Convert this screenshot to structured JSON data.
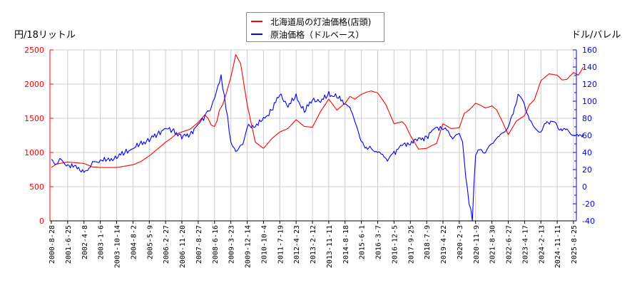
{
  "chart_data": {
    "type": "line",
    "title": "",
    "left_axis": {
      "label": "円/18リットル",
      "range": [
        0,
        2500
      ],
      "ticks": [
        0,
        500,
        1000,
        1500,
        2000,
        2500
      ],
      "color": "#ff0000"
    },
    "right_axis": {
      "label": "ドル/バレル",
      "range": [
        -40,
        160
      ],
      "ticks": [
        -40,
        -20,
        0,
        20,
        40,
        60,
        80,
        100,
        120,
        140,
        160
      ],
      "color": "#0000ff"
    },
    "x_tick_labels": [
      "2000-8-28",
      "2001-6-25",
      "2002-4-8",
      "2003-1-6",
      "2003-10-14",
      "2004-8-2",
      "2005-5-9",
      "2006-2-27",
      "2006-11-20",
      "2007-8-27",
      "2008-6-16",
      "2009-3-23",
      "2009-12-14",
      "2010-10-4",
      "2011-7-19",
      "2012-4-23",
      "2013-2-12",
      "2013-11-11",
      "2014-8-18",
      "2015-6-1",
      "2016-3-7",
      "2016-12-5",
      "2017-9-25",
      "2018-7-9",
      "2019-4-22",
      "2020-2-3",
      "2020-11-9",
      "2021-8-30",
      "2022-6-27",
      "2023-4-17",
      "2024-2-13",
      "2024-11-11",
      "2025-8-25"
    ],
    "grid": true,
    "legend_position": "top-center",
    "series": [
      {
        "name": "北海道局の灯油価格(店頭)",
        "axis": "left",
        "color": "#ff0000",
        "x_index": [
          0,
          0.3,
          1,
          2,
          2.5,
          3,
          4,
          5,
          5.5,
          6,
          6.5,
          7,
          7.3,
          7.6,
          8,
          8.5,
          9,
          9.4,
          9.6,
          9.8,
          10,
          10.15,
          10.3,
          10.5,
          10.7,
          11,
          11.3,
          11.6,
          12,
          12.5,
          13,
          13.5,
          14,
          14.5,
          15,
          15.5,
          16,
          16.5,
          17,
          17.5,
          18,
          18.3,
          18.6,
          19,
          19.3,
          19.6,
          20,
          20.5,
          21,
          21.5,
          21.7,
          22,
          22.5,
          23,
          23.3,
          23.6,
          24,
          24.5,
          25,
          25.3,
          25.6,
          26,
          26.3,
          26.6,
          27,
          27.3,
          27.6,
          28,
          28.5,
          29,
          29.3,
          29.6,
          30,
          30.5,
          31,
          31.3,
          31.6,
          32,
          32.3,
          32.6
        ],
        "values": [
          780,
          830,
          860,
          840,
          790,
          780,
          780,
          820,
          870,
          950,
          1050,
          1150,
          1200,
          1260,
          1300,
          1340,
          1440,
          1550,
          1500,
          1400,
          1380,
          1460,
          1620,
          1700,
          1850,
          2100,
          2430,
          2300,
          1700,
          1150,
          1060,
          1200,
          1300,
          1350,
          1480,
          1380,
          1370,
          1600,
          1780,
          1620,
          1720,
          1820,
          1780,
          1850,
          1880,
          1900,
          1870,
          1700,
          1420,
          1450,
          1400,
          1250,
          1050,
          1060,
          1100,
          1130,
          1420,
          1350,
          1360,
          1570,
          1620,
          1720,
          1690,
          1650,
          1680,
          1620,
          1470,
          1260,
          1460,
          1540,
          1700,
          1770,
          2050,
          2150,
          2130,
          2060,
          2070,
          2170,
          2130,
          2250
        ]
      },
      {
        "name": "原油価格（ドルベース）",
        "axis": "right",
        "color": "#0000ff",
        "x_index": [
          0,
          0.3,
          0.6,
          1,
          1.5,
          2,
          2.3,
          2.6,
          3,
          3.5,
          4,
          4.5,
          5,
          5.5,
          6,
          6.5,
          7,
          7.5,
          8,
          8.5,
          9,
          9.5,
          9.8,
          10,
          10.2,
          10.4,
          10.6,
          10.8,
          11,
          11.3,
          11.5,
          11.8,
          12,
          12.5,
          13,
          13.5,
          14,
          14.5,
          15,
          15.5,
          16,
          16.5,
          17,
          17.5,
          18,
          18.3,
          18.6,
          19,
          19.3,
          19.6,
          20,
          20.3,
          20.6,
          21,
          21.5,
          22,
          22.5,
          23,
          23.5,
          24,
          24.3,
          24.6,
          25,
          25.2,
          25.4,
          25.6,
          25.8,
          26,
          26.3,
          26.6,
          27,
          27.3,
          27.6,
          28,
          28.3,
          28.6,
          29,
          29.3,
          29.6,
          30,
          30.3,
          30.6,
          31,
          31.3,
          31.6,
          32,
          32.3,
          32.6
        ],
        "values": [
          32,
          28,
          30,
          26,
          22,
          18,
          22,
          28,
          32,
          30,
          35,
          40,
          45,
          50,
          55,
          62,
          68,
          65,
          58,
          62,
          72,
          85,
          95,
          105,
          118,
          130,
          105,
          80,
          50,
          42,
          45,
          55,
          70,
          72,
          78,
          90,
          108,
          95,
          105,
          88,
          102,
          100,
          108,
          105,
          98,
          92,
          75,
          50,
          48,
          45,
          42,
          36,
          30,
          40,
          48,
          52,
          55,
          58,
          68,
          70,
          62,
          58,
          62,
          52,
          10,
          -20,
          -38,
          40,
          40,
          42,
          50,
          58,
          62,
          72,
          82,
          110,
          95,
          80,
          68,
          65,
          72,
          78,
          70,
          68,
          65,
          60,
          58,
          62
        ]
      }
    ]
  },
  "legend": {
    "items": [
      {
        "label": "北海道局の灯油価格(店頭)",
        "color": "#ff0000"
      },
      {
        "label": "原油価格（ドルベース）",
        "color": "#0000ff"
      }
    ]
  },
  "axes": {
    "left_label": "円/18リットル",
    "right_label": "ドル/バレル"
  }
}
